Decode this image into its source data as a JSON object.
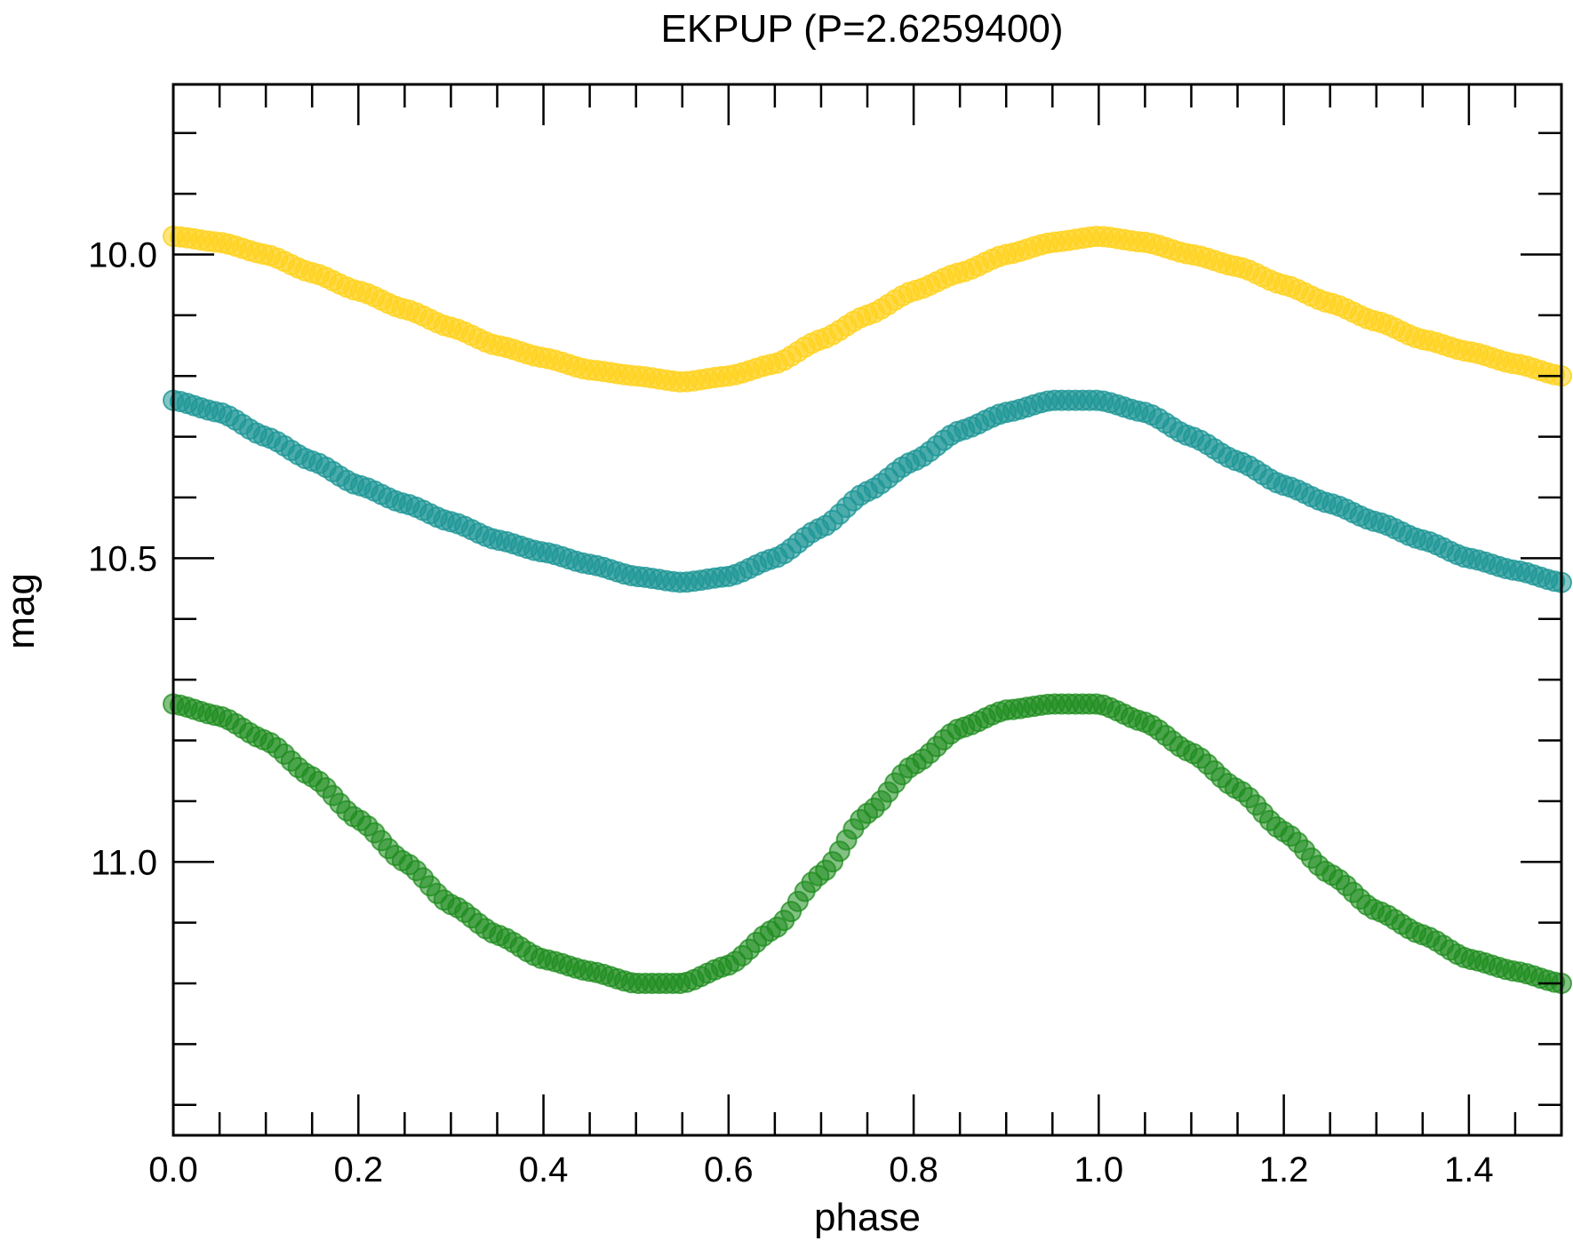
{
  "chart_data": {
    "type": "scatter",
    "title": "EKPUP (P=2.6259400)",
    "xlabel": "phase",
    "ylabel": "mag",
    "xlim": [
      0.0,
      1.5
    ],
    "ylim": [
      11.45,
      9.72
    ],
    "y_inverted": true,
    "grid": false,
    "x_major_ticks": [
      "0.0",
      "0.2",
      "0.4",
      "0.6",
      "0.8",
      "1.0",
      "1.2",
      "1.4"
    ],
    "y_major_ticks": [
      "10.0",
      "10.5",
      "11.0"
    ],
    "series": [
      {
        "color": "#FFD21E",
        "opacity": 0.85,
        "x": [
          0.0,
          0.05,
          0.1,
          0.15,
          0.2,
          0.25,
          0.3,
          0.35,
          0.4,
          0.45,
          0.5,
          0.55,
          0.6,
          0.65,
          0.7,
          0.75,
          0.8,
          0.85,
          0.9,
          0.95,
          1.0,
          1.05,
          1.1,
          1.15,
          1.2,
          1.25,
          1.3,
          1.35,
          1.4,
          1.45,
          1.5
        ],
        "y": [
          9.97,
          9.98,
          10.0,
          10.03,
          10.06,
          10.09,
          10.12,
          10.15,
          10.17,
          10.19,
          10.2,
          10.21,
          10.2,
          10.18,
          10.14,
          10.1,
          10.06,
          10.03,
          10.0,
          9.98,
          9.97,
          9.98,
          10.0,
          10.02,
          10.05,
          10.08,
          10.11,
          10.14,
          10.16,
          10.18,
          10.2
        ]
      },
      {
        "color": "#1E9696",
        "opacity": 0.8,
        "x": [
          0.0,
          0.05,
          0.1,
          0.15,
          0.2,
          0.25,
          0.3,
          0.35,
          0.4,
          0.45,
          0.5,
          0.55,
          0.6,
          0.65,
          0.7,
          0.75,
          0.8,
          0.85,
          0.9,
          0.95,
          1.0,
          1.05,
          1.1,
          1.15,
          1.2,
          1.25,
          1.3,
          1.35,
          1.4,
          1.45,
          1.5
        ],
        "y": [
          10.24,
          10.26,
          10.3,
          10.34,
          10.38,
          10.41,
          10.44,
          10.47,
          10.49,
          10.51,
          10.53,
          10.54,
          10.53,
          10.5,
          10.45,
          10.39,
          10.34,
          10.29,
          10.26,
          10.24,
          10.24,
          10.26,
          10.3,
          10.34,
          10.38,
          10.41,
          10.44,
          10.47,
          10.5,
          10.52,
          10.54
        ]
      },
      {
        "color": "#1E8C1E",
        "opacity": 0.75,
        "x": [
          0.0,
          0.05,
          0.1,
          0.15,
          0.2,
          0.25,
          0.3,
          0.35,
          0.4,
          0.45,
          0.5,
          0.55,
          0.6,
          0.65,
          0.7,
          0.75,
          0.8,
          0.85,
          0.9,
          0.95,
          1.0,
          1.05,
          1.1,
          1.15,
          1.2,
          1.25,
          1.3,
          1.35,
          1.4,
          1.45,
          1.5
        ],
        "y": [
          10.74,
          10.76,
          10.8,
          10.86,
          10.93,
          11.0,
          11.07,
          11.12,
          11.16,
          11.18,
          11.2,
          11.2,
          11.17,
          11.11,
          11.02,
          10.92,
          10.84,
          10.78,
          10.75,
          10.74,
          10.74,
          10.77,
          10.82,
          10.88,
          10.95,
          11.02,
          11.08,
          11.12,
          11.16,
          11.18,
          11.2
        ]
      }
    ]
  }
}
